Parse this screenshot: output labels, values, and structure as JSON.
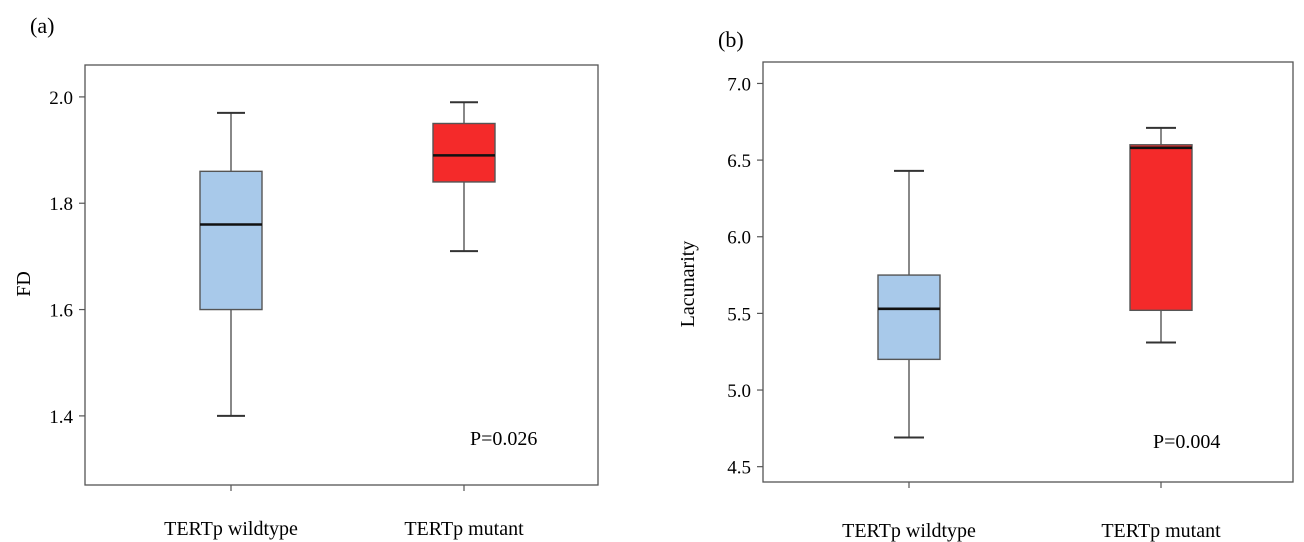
{
  "chart_data": [
    {
      "type": "box",
      "panel_label": "(a)",
      "xlabel": "",
      "ylabel": "FD",
      "ylim": [
        1.27,
        2.06
      ],
      "yticks": [
        1.4,
        1.6,
        1.8,
        2.0
      ],
      "ytick_labels": [
        "1.4",
        "1.6",
        "1.8",
        "2.0"
      ],
      "categories": [
        "TERTp wildtype",
        "TERTp mutant"
      ],
      "boxes": [
        {
          "category": "TERTp wildtype",
          "whisker_low": 1.4,
          "q1": 1.6,
          "median": 1.76,
          "q3": 1.86,
          "whisker_high": 1.97,
          "color": "#a8c9ea"
        },
        {
          "category": "TERTp mutant",
          "whisker_low": 1.71,
          "q1": 1.84,
          "median": 1.89,
          "q3": 1.95,
          "whisker_high": 1.99,
          "color": "#f42a2a"
        }
      ],
      "annotation": "P=0.026",
      "grid": false
    },
    {
      "type": "box",
      "panel_label": "(b)",
      "xlabel": "",
      "ylabel": "Lacunarity",
      "ylim": [
        4.4,
        7.14
      ],
      "yticks": [
        4.5,
        5.0,
        5.5,
        6.0,
        6.5,
        7.0
      ],
      "ytick_labels": [
        "4.5",
        "5.0",
        "5.5",
        "6.0",
        "6.5",
        "7.0"
      ],
      "categories": [
        "TERTp wildtype",
        "TERTp mutant"
      ],
      "boxes": [
        {
          "category": "TERTp wildtype",
          "whisker_low": 4.69,
          "q1": 5.2,
          "median": 5.53,
          "q3": 5.75,
          "whisker_high": 6.43,
          "color": "#a8c9ea"
        },
        {
          "category": "TERTp mutant",
          "whisker_low": 5.31,
          "q1": 5.52,
          "median": 6.58,
          "q3": 6.6,
          "whisker_high": 6.71,
          "color": "#f42a2a"
        }
      ],
      "annotation": "P=0.004",
      "grid": false
    }
  ]
}
